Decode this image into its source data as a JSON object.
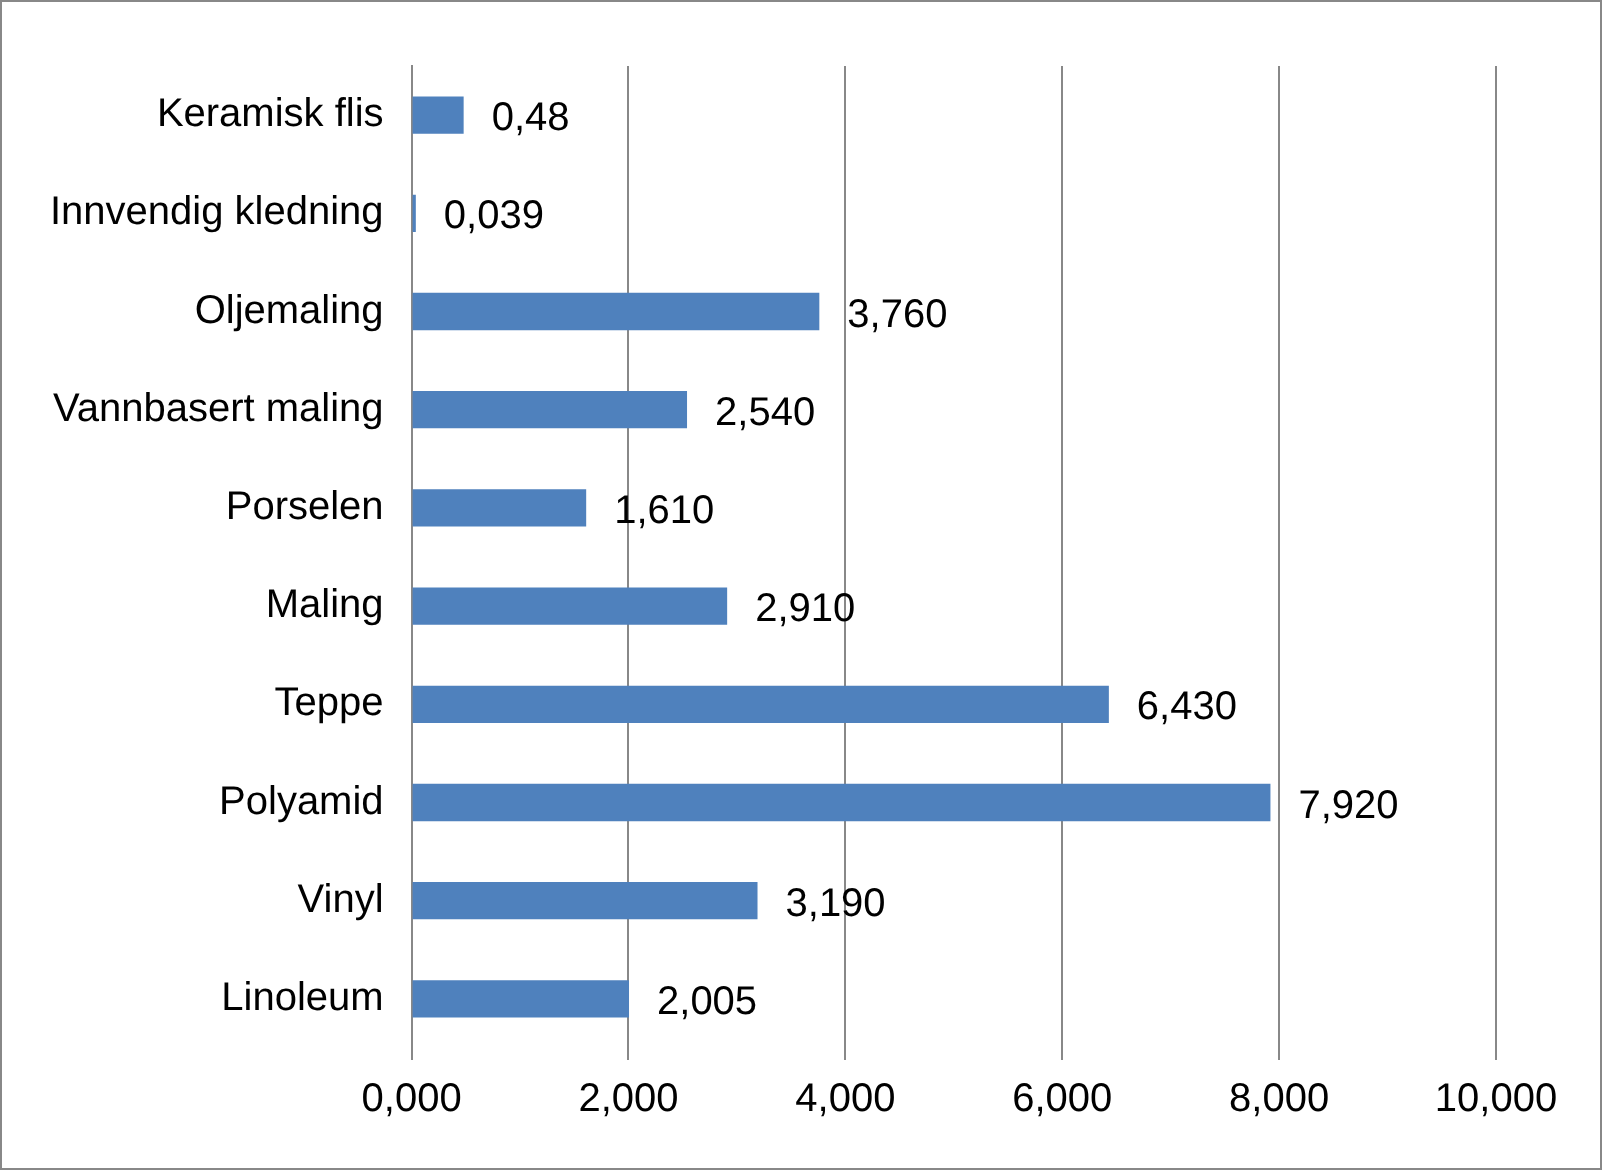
{
  "chart_data": {
    "type": "bar",
    "orientation": "horizontal",
    "categories": [
      "Keramisk flis",
      "Innvendig kledning",
      "Oljemaling",
      "Vannbasert maling",
      "Porselen",
      "Maling",
      "Teppe",
      "Polyamid",
      "Vinyl",
      "Linoleum"
    ],
    "values": [
      0.48,
      0.039,
      3.76,
      2.54,
      1.61,
      2.91,
      6.43,
      7.92,
      3.19,
      2.005
    ],
    "value_labels": [
      "0,48",
      "0,039",
      "3,760",
      "2,540",
      "1,610",
      "2,910",
      "6,430",
      "7,920",
      "3,190",
      "2,005"
    ],
    "color": "#4f81bd",
    "xlim": [
      0,
      10
    ],
    "xticks": [
      {
        "value": 0,
        "label": "0,000"
      },
      {
        "value": 2,
        "label": "2,000"
      },
      {
        "value": 4,
        "label": "4,000"
      },
      {
        "value": 6,
        "label": "6,000"
      },
      {
        "value": 8,
        "label": "8,000"
      },
      {
        "value": 10,
        "label": "10,000"
      }
    ],
    "grid": "x"
  }
}
